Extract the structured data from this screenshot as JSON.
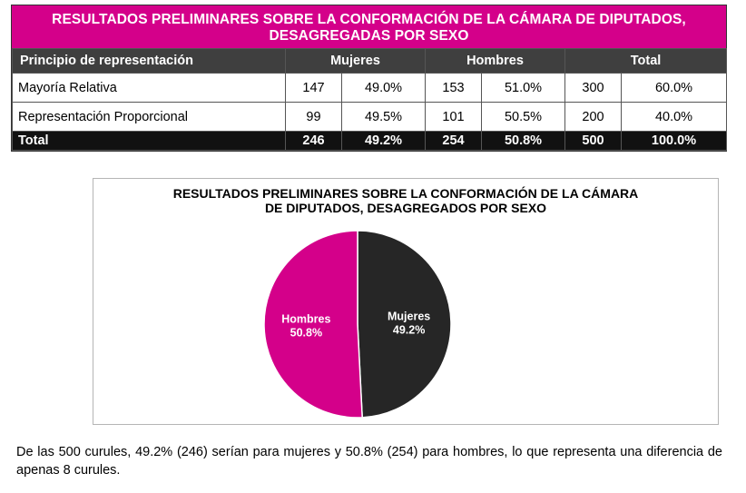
{
  "table": {
    "title_line1": "RESULTADOS PRELIMINARES SOBRE LA CONFORMACIÓN DE LA CÁMARA DE DIPUTADOS,",
    "title_line2": "DESAGREGADAS POR SEXO",
    "headers": {
      "principle": "Principio de representación",
      "women": "Mujeres",
      "men": "Hombres",
      "total": "Total"
    },
    "rows": [
      {
        "label": "Mayoría Relativa",
        "women_n": "147",
        "women_pct": "49.0%",
        "men_n": "153",
        "men_pct": "51.0%",
        "total_n": "300",
        "total_pct": "60.0%"
      },
      {
        "label": "Representación Proporcional",
        "women_n": "99",
        "women_pct": "49.5%",
        "men_n": "101",
        "men_pct": "50.5%",
        "total_n": "200",
        "total_pct": "40.0%"
      }
    ],
    "total_row": {
      "label": "Total",
      "women_n": "246",
      "women_pct": "49.2%",
      "men_n": "254",
      "men_pct": "50.8%",
      "total_n": "500",
      "total_pct": "100.0%"
    }
  },
  "chart_data": {
    "type": "pie",
    "title_line1": "RESULTADOS PRELIMINARES SOBRE LA CONFORMACIÓN  DE LA CÁMARA",
    "title_line2": "DE DIPUTADOS, DESAGREGADOS POR SEXO",
    "slices": [
      {
        "label": "Mujeres",
        "value": 49.2,
        "value_label": "49.2%",
        "color": "#262626"
      },
      {
        "label": "Hombres",
        "value": 50.8,
        "value_label": "50.8%",
        "color": "#d4008a"
      }
    ]
  },
  "caption": "De las 500 curules, 49.2% (246) serían para mujeres y 50.8% (254) para hombres, lo que representa una diferencia de apenas 8 curules."
}
